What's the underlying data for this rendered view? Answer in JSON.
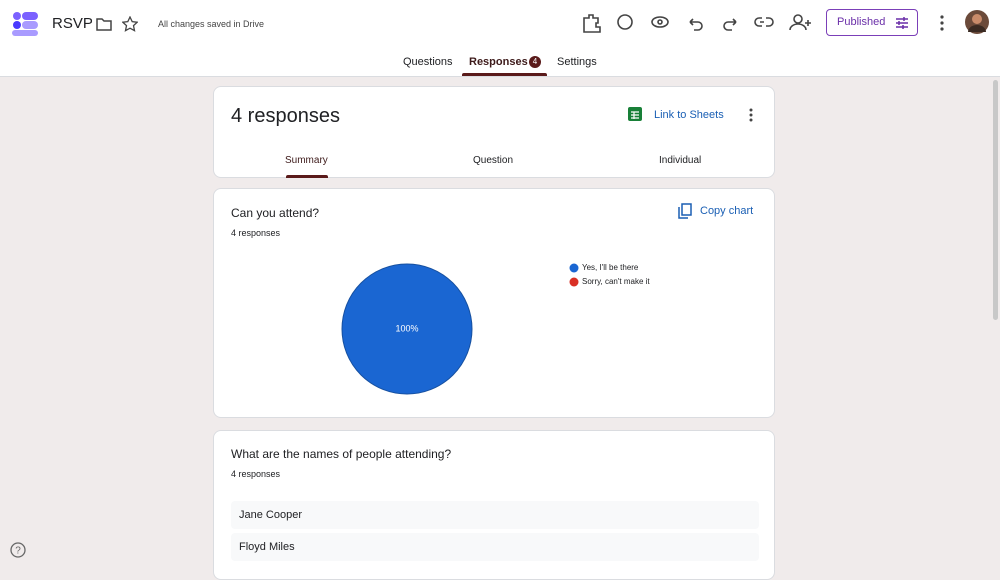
{
  "header": {
    "title": "RSVP",
    "save_status": "All changes saved in Drive",
    "publish_button": "Published"
  },
  "tabs": [
    {
      "label": "Questions"
    },
    {
      "label": "Responses",
      "badge": "4"
    },
    {
      "label": "Settings"
    }
  ],
  "summary": {
    "title": "4 responses",
    "link": "Link to Sheets",
    "subtabs": [
      "Summary",
      "Question",
      "Individual"
    ]
  },
  "questions": [
    {
      "title": "Can you attend?",
      "response_count": "4 responses",
      "action": "Copy chart",
      "chart": {
        "type": "pie",
        "categories": [
          "Yes, I'll be there",
          "Sorry, can't make it"
        ],
        "values": [
          100,
          0
        ],
        "value_labels": [
          "100%",
          null
        ],
        "colors": [
          "#1a66d2",
          "#d93025"
        ]
      }
    },
    {
      "title": "What are the names of people attending?",
      "response_count": "4 responses",
      "answers": [
        "Jane Cooper",
        "Floyd Miles"
      ]
    }
  ]
}
